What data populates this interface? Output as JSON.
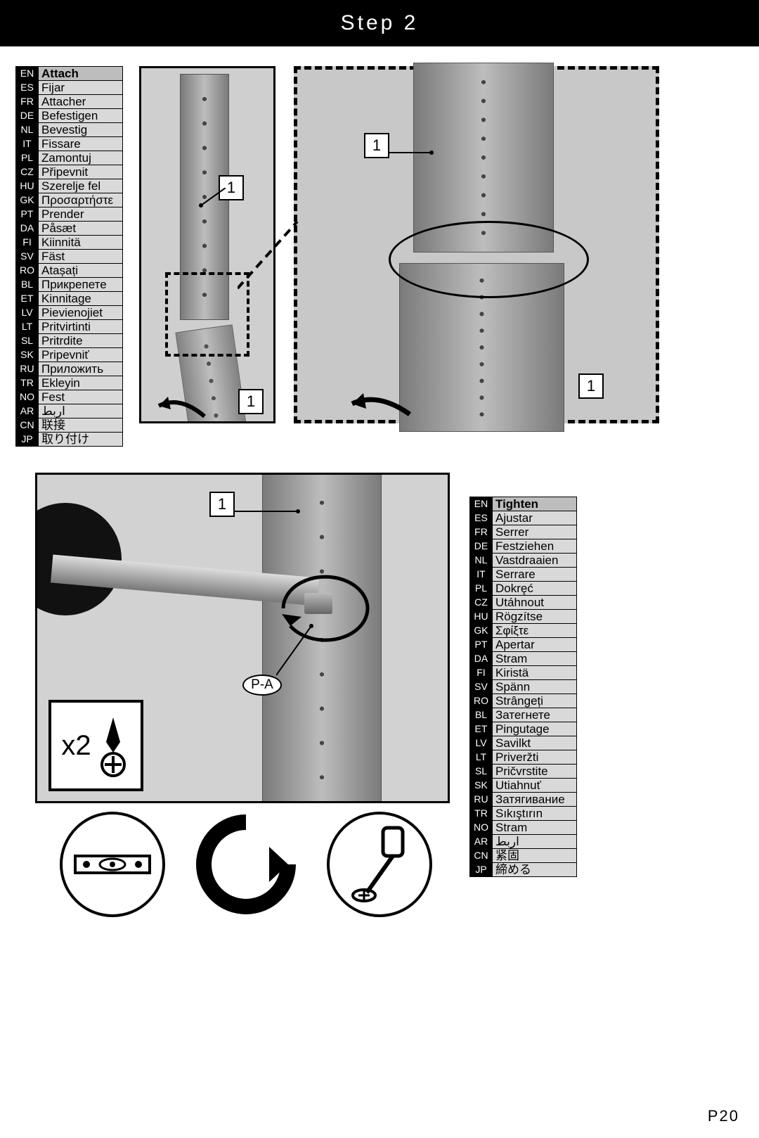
{
  "header": {
    "title": "Step 2"
  },
  "page_number": "P20",
  "callouts": {
    "one": "1",
    "pa": "P-A",
    "x2": "x2"
  },
  "table_attach": {
    "highlight_index": 0,
    "rows": [
      {
        "code": "EN",
        "text": "Attach"
      },
      {
        "code": "ES",
        "text": "Fijar"
      },
      {
        "code": "FR",
        "text": "Attacher"
      },
      {
        "code": "DE",
        "text": "Befestigen"
      },
      {
        "code": "NL",
        "text": "Bevestig"
      },
      {
        "code": "IT",
        "text": "Fissare"
      },
      {
        "code": "PL",
        "text": "Zamontuj"
      },
      {
        "code": "CZ",
        "text": "Připevnit"
      },
      {
        "code": "HU",
        "text": "Szerelje fel"
      },
      {
        "code": "GK",
        "text": "Προσαρτήστε"
      },
      {
        "code": "PT",
        "text": "Prender"
      },
      {
        "code": "DA",
        "text": "Påsæt"
      },
      {
        "code": "FI",
        "text": "Kiinnitä"
      },
      {
        "code": "SV",
        "text": "Fäst"
      },
      {
        "code": "RO",
        "text": "Atașați"
      },
      {
        "code": "BL",
        "text": "Прикрепете"
      },
      {
        "code": "ET",
        "text": "Kinnitage"
      },
      {
        "code": "LV",
        "text": "Pievienojiet"
      },
      {
        "code": "LT",
        "text": "Pritvirtinti"
      },
      {
        "code": "SL",
        "text": "Pritrdite"
      },
      {
        "code": "SK",
        "text": "Pripevniť"
      },
      {
        "code": "RU",
        "text": "Приложить"
      },
      {
        "code": "TR",
        "text": "Ekleyin"
      },
      {
        "code": "NO",
        "text": "Fest"
      },
      {
        "code": "AR",
        "text": "اربط"
      },
      {
        "code": "CN",
        "text": "联接"
      },
      {
        "code": "JP",
        "text": "取り付け"
      }
    ]
  },
  "table_tighten": {
    "highlight_index": 0,
    "rows": [
      {
        "code": "EN",
        "text": "Tighten"
      },
      {
        "code": "ES",
        "text": "Ajustar"
      },
      {
        "code": "FR",
        "text": "Serrer"
      },
      {
        "code": "DE",
        "text": "Festziehen"
      },
      {
        "code": "NL",
        "text": "Vastdraaien"
      },
      {
        "code": "IT",
        "text": "Serrare"
      },
      {
        "code": "PL",
        "text": "Dokręć"
      },
      {
        "code": "CZ",
        "text": "Utáhnout"
      },
      {
        "code": "HU",
        "text": "Rögzítse"
      },
      {
        "code": "GK",
        "text": "Σφίξτε"
      },
      {
        "code": "PT",
        "text": "Apertar"
      },
      {
        "code": "DA",
        "text": "Stram"
      },
      {
        "code": "FI",
        "text": "Kiristä"
      },
      {
        "code": "SV",
        "text": "Spänn"
      },
      {
        "code": "RO",
        "text": "Strângeți"
      },
      {
        "code": "BL",
        "text": "Затегнете"
      },
      {
        "code": "ET",
        "text": "Pingutage"
      },
      {
        "code": "LV",
        "text": "Savilkt"
      },
      {
        "code": "LT",
        "text": "Priveržti"
      },
      {
        "code": "SL",
        "text": "Pričvrstite"
      },
      {
        "code": "SK",
        "text": "Utiahnuť"
      },
      {
        "code": "RU",
        "text": "Затягивание"
      },
      {
        "code": "TR",
        "text": "Sıkıştırın"
      },
      {
        "code": "NO",
        "text": "Stram"
      },
      {
        "code": "AR",
        "text": "اربط"
      },
      {
        "code": "CN",
        "text": "紧固"
      },
      {
        "code": "JP",
        "text": "締める"
      }
    ]
  },
  "colors": {
    "black": "#000000",
    "white": "#ffffff",
    "grey_light": "#d9d9d9",
    "grey_hl": "#bdbdbd",
    "photo_bg": "#cfcfcf"
  }
}
